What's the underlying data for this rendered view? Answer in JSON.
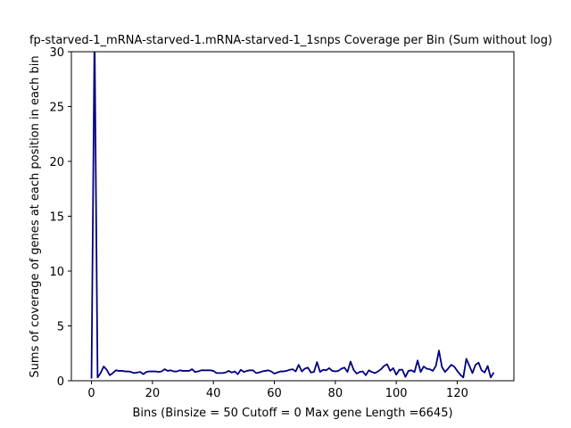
{
  "chart_data": {
    "type": "line",
    "title": "fp-starved-1_mRNA-starved-1.mRNA-starved-1_1snps Coverage per Bin (Sum without log)",
    "xlabel": "Bins  (Binsize = 50 Cutoff = 0 Max gene Length =6645)",
    "ylabel": "Sums of coverage of genes at each position in each bin",
    "xlim": [
      -6.6,
      138.6
    ],
    "ylim": [
      0,
      30
    ],
    "x_ticks": [
      0,
      20,
      40,
      60,
      80,
      100,
      120
    ],
    "y_ticks": [
      0,
      5,
      10,
      15,
      20,
      25,
      30
    ],
    "grid": false,
    "line_color": "#000080",
    "series": [
      {
        "x": [
          0,
          1,
          2,
          3,
          4,
          5,
          6,
          7,
          8,
          9,
          10,
          11,
          12,
          13,
          14,
          15,
          16,
          17,
          18,
          19,
          20,
          21,
          22,
          23,
          24,
          25,
          26,
          27,
          28,
          29,
          30,
          31,
          32,
          33,
          34,
          35,
          36,
          37,
          38,
          39,
          40,
          41,
          42,
          43,
          44,
          45,
          46,
          47,
          48,
          49,
          50,
          51,
          52,
          53,
          54,
          55,
          56,
          57,
          58,
          59,
          60,
          61,
          62,
          63,
          64,
          65,
          66,
          67,
          68,
          69,
          70,
          71,
          72,
          73,
          74,
          75,
          76,
          77,
          78,
          79,
          80,
          81,
          82,
          83,
          84,
          85,
          86,
          87,
          88,
          89,
          90,
          91,
          92,
          93,
          94,
          95,
          96,
          97,
          98,
          99,
          100,
          101,
          102,
          103,
          104,
          105,
          106,
          107,
          108,
          109,
          110,
          111,
          112,
          113,
          114,
          115,
          116,
          117,
          118,
          119,
          120,
          121,
          122,
          123,
          124,
          125,
          126,
          127,
          128,
          129,
          130,
          131,
          132
        ],
        "values": [
          0.2,
          32.0,
          0.3,
          0.7,
          1.3,
          1.0,
          0.5,
          0.7,
          0.95,
          0.9,
          0.9,
          0.85,
          0.85,
          0.8,
          0.7,
          0.75,
          0.8,
          0.6,
          0.8,
          0.85,
          0.85,
          0.85,
          0.8,
          0.85,
          1.05,
          0.9,
          0.95,
          0.85,
          0.85,
          0.95,
          0.9,
          0.9,
          0.9,
          1.05,
          0.8,
          0.85,
          0.95,
          0.95,
          0.95,
          0.95,
          0.9,
          0.7,
          0.7,
          0.7,
          0.75,
          0.9,
          0.75,
          0.85,
          0.6,
          1.0,
          0.8,
          0.9,
          0.95,
          0.95,
          0.7,
          0.75,
          0.85,
          0.9,
          0.95,
          0.85,
          0.65,
          0.75,
          0.85,
          0.85,
          0.9,
          1.0,
          1.05,
          0.85,
          1.45,
          0.85,
          1.1,
          1.2,
          0.75,
          0.8,
          1.7,
          0.8,
          1.0,
          0.95,
          1.15,
          0.9,
          0.85,
          0.9,
          1.1,
          1.2,
          0.8,
          1.75,
          1.0,
          0.65,
          0.8,
          0.85,
          0.5,
          0.95,
          0.8,
          0.7,
          0.85,
          1.05,
          1.35,
          1.5,
          0.9,
          1.15,
          0.55,
          1.0,
          1.0,
          0.35,
          0.9,
          0.95,
          0.8,
          1.85,
          0.8,
          1.3,
          1.1,
          1.05,
          0.9,
          1.35,
          2.75,
          1.25,
          0.8,
          1.1,
          1.45,
          1.3,
          0.9,
          0.55,
          0.3,
          2.0,
          1.35,
          0.7,
          1.45,
          1.65,
          0.95,
          0.75,
          1.35,
          0.3,
          0.75
        ]
      }
    ]
  }
}
